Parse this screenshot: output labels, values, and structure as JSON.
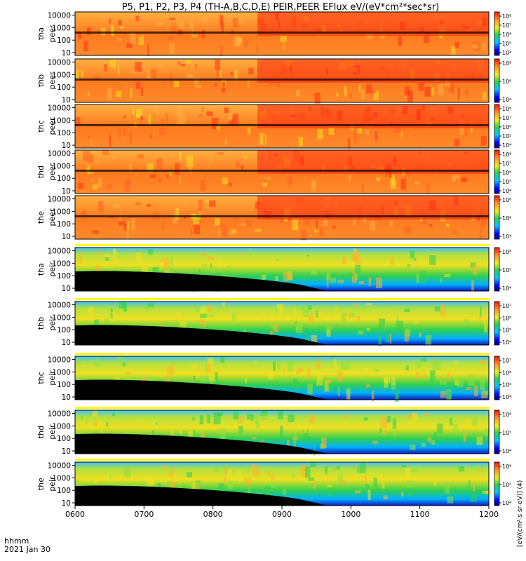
{
  "title": "P5, P1, P2, P3, P4 (TH-A,B,C,D,E) PEIR,PEER EFlux eV/(eV*cm²*sec*sr)",
  "time_label": "hhmm",
  "date_label": "2021 Jan 30",
  "colorbar_label": "[eV/(cm²-s sr-eV)] (4)",
  "colors": {
    "black": "#000000",
    "blue": "#0000ff",
    "cyan": "#00c8ff",
    "green": "#30d050",
    "yellow": "#f0f020",
    "orange": "#ff9030",
    "red": "#ff2000"
  },
  "chart_data": {
    "type": "heatmap",
    "x_axis": {
      "ticks": [
        "0600",
        "0700",
        "0800",
        "0900",
        "1000",
        "1100",
        "1200"
      ],
      "range": [
        "0600",
        "1200"
      ]
    },
    "y_scale": "log",
    "y_ticks": [
      "10",
      "100",
      "1000",
      "10000"
    ],
    "panels": [
      {
        "id": "tha-peer",
        "probe": "tha",
        "species": "peer",
        "colorbar_ticks": [
          "10⁴",
          "10⁵",
          "10⁶",
          "10⁷",
          "10⁸"
        ]
      },
      {
        "id": "thb-peer",
        "probe": "thb",
        "species": "peer",
        "colorbar_ticks": [
          "10⁴",
          "10⁶",
          "10⁸"
        ]
      },
      {
        "id": "thc-peer",
        "probe": "thc",
        "species": "peer",
        "colorbar_ticks": [
          "10⁴",
          "10⁵",
          "10⁶",
          "10⁷",
          "10⁸"
        ]
      },
      {
        "id": "thd-peer",
        "probe": "thd",
        "species": "peer",
        "colorbar_ticks": [
          "10⁴",
          "10⁵",
          "10⁶",
          "10⁷",
          "10⁸"
        ]
      },
      {
        "id": "the-peer",
        "probe": "the",
        "species": "peer",
        "colorbar_ticks": [
          "10⁴",
          "10⁶",
          "10⁸"
        ]
      },
      {
        "id": "tha-peir",
        "probe": "tha",
        "species": "peir",
        "colorbar_ticks": [
          "10⁴",
          "10⁵",
          "10⁶"
        ]
      },
      {
        "id": "thb-peir",
        "probe": "thb",
        "species": "peir",
        "colorbar_ticks": [
          "10⁴",
          "10⁵",
          "10⁶",
          "10⁷"
        ]
      },
      {
        "id": "thc-peir",
        "probe": "thc",
        "species": "peir",
        "colorbar_ticks": [
          "10⁴",
          "10⁵",
          "10⁶",
          "10⁷"
        ]
      },
      {
        "id": "thd-peir",
        "probe": "thd",
        "species": "peir",
        "colorbar_ticks": [
          "10⁴",
          "10⁵",
          "10⁶"
        ]
      },
      {
        "id": "the-peir",
        "probe": "the",
        "species": "peir",
        "colorbar_ticks": [
          "10⁴",
          "10⁵",
          "10⁶"
        ]
      }
    ]
  }
}
